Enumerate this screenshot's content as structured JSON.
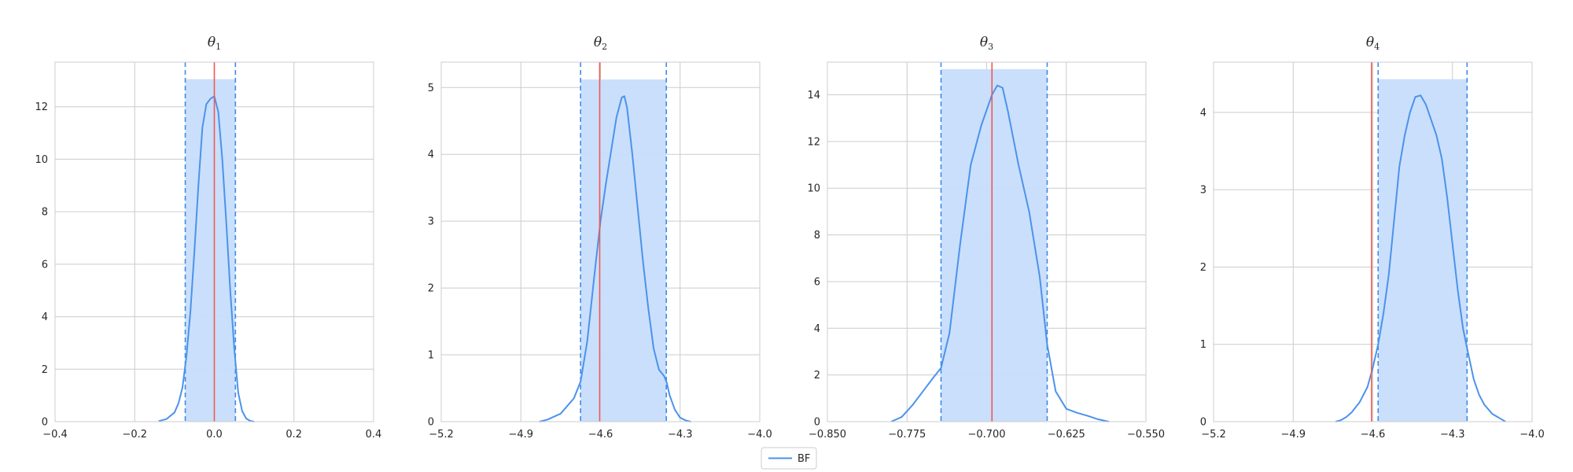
{
  "legend": {
    "label": "BF",
    "color": "#4b93eb"
  },
  "colors": {
    "density": "#4b93eb",
    "interval_fill": "#c7ddfc",
    "interval_edge": "#3d8be8",
    "true_value": "#f0594f"
  },
  "chart_data": [
    {
      "type": "line",
      "title_base": "θ",
      "title_sub": "1",
      "xlim": [
        -0.4,
        0.4
      ],
      "ylim": [
        0,
        13.7
      ],
      "xticks": [
        -0.4,
        -0.2,
        0.0,
        0.2,
        0.4
      ],
      "xtick_labels": [
        "−0.4",
        "−0.2",
        "0.0",
        "0.2",
        "0.4"
      ],
      "yticks": [
        0,
        2,
        4,
        6,
        8,
        10,
        12
      ],
      "ytick_labels": [
        "0",
        "2",
        "4",
        "6",
        "8",
        "10",
        "12"
      ],
      "true_value": 0.0,
      "interval": [
        -0.073,
        0.053
      ],
      "interval_top": 13.05,
      "series": [
        {
          "x": [
            -0.14,
            -0.12,
            -0.1,
            -0.09,
            -0.08,
            -0.07,
            -0.06,
            -0.05,
            -0.04,
            -0.03,
            -0.02,
            -0.01,
            0.0,
            0.01,
            0.02,
            0.03,
            0.04,
            0.05,
            0.06,
            0.07,
            0.08,
            0.09,
            0.1
          ],
          "y": [
            0.02,
            0.1,
            0.35,
            0.7,
            1.3,
            2.5,
            4.2,
            6.5,
            9.0,
            11.2,
            12.1,
            12.3,
            12.4,
            11.8,
            10.0,
            7.6,
            5.0,
            2.8,
            1.1,
            0.4,
            0.12,
            0.03,
            0.0
          ]
        }
      ]
    },
    {
      "type": "line",
      "title_base": "θ",
      "title_sub": "2",
      "xlim": [
        -5.2,
        -4.0
      ],
      "ylim": [
        0,
        5.38
      ],
      "xticks": [
        -5.2,
        -4.9,
        -4.6,
        -4.3,
        -4.0
      ],
      "xtick_labels": [
        "−5.2",
        "−4.9",
        "−4.6",
        "−4.3",
        "−4.0"
      ],
      "yticks": [
        0,
        1,
        2,
        3,
        4,
        5
      ],
      "ytick_labels": [
        "0",
        "1",
        "2",
        "3",
        "4",
        "5"
      ],
      "true_value": -4.603,
      "interval": [
        -4.675,
        -4.352
      ],
      "interval_top": 5.12,
      "series": [
        {
          "x": [
            -4.83,
            -4.8,
            -4.75,
            -4.7,
            -4.675,
            -4.65,
            -4.62,
            -4.6,
            -4.58,
            -4.56,
            -4.54,
            -4.52,
            -4.51,
            -4.5,
            -4.48,
            -4.46,
            -4.44,
            -4.42,
            -4.4,
            -4.38,
            -4.36,
            -4.35,
            -4.34,
            -4.32,
            -4.3,
            -4.28,
            -4.26
          ],
          "y": [
            0.0,
            0.03,
            0.12,
            0.35,
            0.6,
            1.2,
            2.3,
            3.0,
            3.55,
            4.05,
            4.55,
            4.85,
            4.87,
            4.7,
            4.0,
            3.2,
            2.4,
            1.7,
            1.1,
            0.78,
            0.68,
            0.58,
            0.4,
            0.18,
            0.06,
            0.02,
            0.0
          ]
        }
      ]
    },
    {
      "type": "line",
      "title_base": "θ",
      "title_sub": "3",
      "xlim": [
        -0.85,
        -0.55
      ],
      "ylim": [
        0,
        15.4
      ],
      "xticks": [
        -0.85,
        -0.775,
        -0.7,
        -0.625,
        -0.55
      ],
      "xtick_labels": [
        "−0.850",
        "−0.775",
        "−0.700",
        "−0.625",
        "−0.550"
      ],
      "yticks": [
        0,
        2,
        4,
        6,
        8,
        10,
        12,
        14
      ],
      "ytick_labels": [
        "0",
        "2",
        "4",
        "6",
        "8",
        "10",
        "12",
        "14"
      ],
      "true_value": -0.695,
      "interval": [
        -0.743,
        -0.643
      ],
      "interval_top": 15.1,
      "series": [
        {
          "x": [
            -0.79,
            -0.78,
            -0.77,
            -0.76,
            -0.75,
            -0.743,
            -0.735,
            -0.725,
            -0.715,
            -0.705,
            -0.695,
            -0.69,
            -0.685,
            -0.68,
            -0.67,
            -0.66,
            -0.65,
            -0.643,
            -0.635,
            -0.625,
            -0.615,
            -0.605,
            -0.595,
            -0.585
          ],
          "y": [
            0.0,
            0.2,
            0.7,
            1.3,
            1.9,
            2.3,
            3.8,
            7.6,
            11.0,
            12.7,
            14.0,
            14.4,
            14.3,
            13.3,
            11.0,
            9.0,
            6.2,
            3.3,
            1.3,
            0.55,
            0.38,
            0.25,
            0.1,
            0.0
          ]
        }
      ]
    },
    {
      "type": "line",
      "title_base": "θ",
      "title_sub": "4",
      "xlim": [
        -5.2,
        -4.0
      ],
      "ylim": [
        0,
        4.65
      ],
      "xticks": [
        -5.2,
        -4.9,
        -4.6,
        -4.3,
        -4.0
      ],
      "xtick_labels": [
        "−5.2",
        "−4.9",
        "−4.6",
        "−4.3",
        "−4.0"
      ],
      "yticks": [
        0,
        1,
        2,
        3,
        4
      ],
      "ytick_labels": [
        "0",
        "1",
        "2",
        "3",
        "4"
      ],
      "true_value": -4.605,
      "interval": [
        -4.58,
        -4.245
      ],
      "interval_top": 4.43,
      "series": [
        {
          "x": [
            -4.74,
            -4.72,
            -4.7,
            -4.68,
            -4.65,
            -4.62,
            -4.6,
            -4.58,
            -4.56,
            -4.54,
            -4.52,
            -4.5,
            -4.48,
            -4.46,
            -4.44,
            -4.42,
            -4.4,
            -4.38,
            -4.36,
            -4.34,
            -4.32,
            -4.3,
            -4.28,
            -4.26,
            -4.245,
            -4.22,
            -4.2,
            -4.18,
            -4.15,
            -4.12,
            -4.1
          ],
          "y": [
            0.0,
            0.02,
            0.06,
            0.12,
            0.25,
            0.45,
            0.7,
            1.0,
            1.4,
            1.9,
            2.6,
            3.3,
            3.7,
            4.0,
            4.2,
            4.22,
            4.1,
            3.9,
            3.7,
            3.4,
            2.9,
            2.3,
            1.7,
            1.2,
            0.95,
            0.55,
            0.35,
            0.22,
            0.1,
            0.04,
            0.0
          ]
        }
      ]
    }
  ]
}
